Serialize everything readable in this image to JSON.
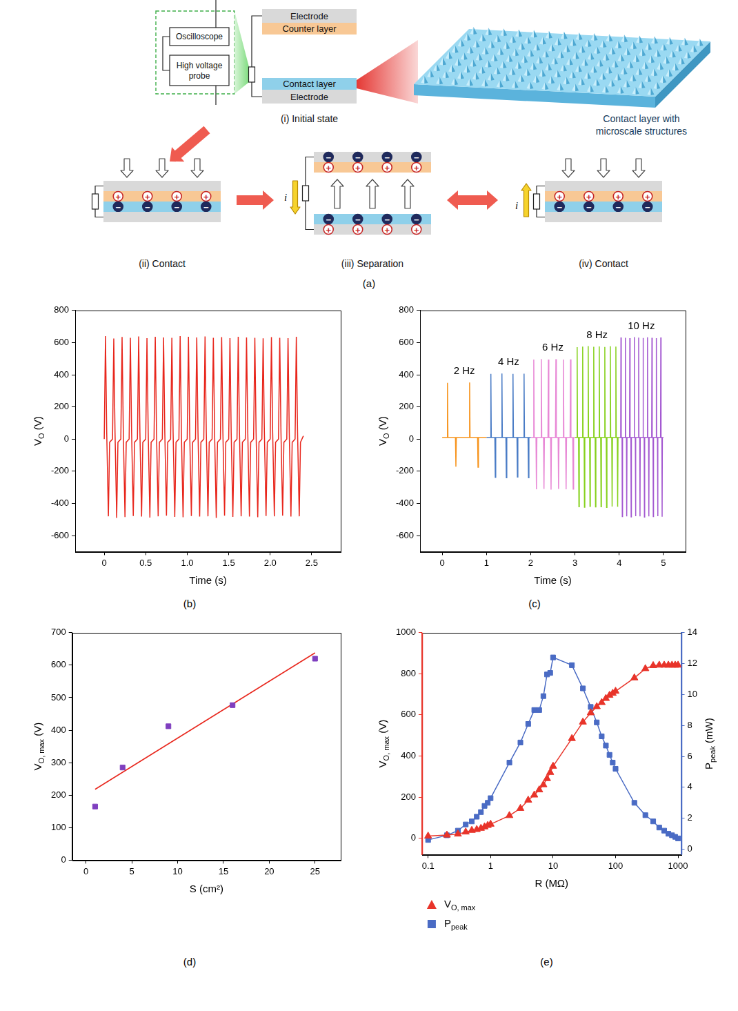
{
  "diagram": {
    "caption": "(a)",
    "instruments": [
      "Oscilloscope",
      "High voltage probe"
    ],
    "initial_state": {
      "caption": "(i) Initial state",
      "layers": [
        "Electrode",
        "Counter layer",
        "Contact layer",
        "Electrode"
      ]
    },
    "inset": "Contact layer with microscale structures",
    "stages": [
      {
        "caption": "(ii) Contact",
        "state": "contact"
      },
      {
        "caption": "(iii) Separation",
        "state": "separation",
        "current": "i",
        "current_direction": "down"
      },
      {
        "caption": "(iv) Contact",
        "state": "contact",
        "current": "i",
        "current_direction": "up"
      }
    ],
    "charges": {
      "positive": "+",
      "negative": "−"
    }
  },
  "chart_data": [
    {
      "caption": "(b)",
      "type": "line",
      "x_label": "Time (s)",
      "y_label": {
        "text": "VO (V)",
        "subscript": "O"
      },
      "xlim": [
        -0.35,
        2.85
      ],
      "ylim": [
        -700,
        800
      ],
      "xticks": [
        0,
        0.5,
        {
          "value": 1,
          "label": "1.0"
        },
        1.5,
        {
          "value": 2,
          "label": "2.0"
        },
        2.5
      ],
      "yticks": [
        -600,
        -400,
        -200,
        0,
        200,
        400,
        600,
        800
      ],
      "grid": false,
      "series": [
        {
          "color": "#e8261c",
          "x": [
            0,
            0.015,
            0.03,
            0.05,
            0.065,
            0.1,
            0.115,
            0.13,
            0.15,
            0.165,
            0.2,
            0.215,
            0.23,
            0.25,
            0.265,
            0.3,
            0.315,
            0.33,
            0.35,
            0.365,
            0.4,
            0.415,
            0.43,
            0.45,
            0.465,
            0.5,
            0.515,
            0.53,
            0.55,
            0.565,
            0.6,
            0.615,
            0.63,
            0.65,
            0.665,
            0.7,
            0.715,
            0.73,
            0.75,
            0.765,
            0.8,
            0.815,
            0.83,
            0.85,
            0.865,
            0.9,
            0.915,
            0.93,
            0.95,
            0.965,
            1.0,
            1.015,
            1.03,
            1.05,
            1.065,
            1.1,
            1.115,
            1.13,
            1.15,
            1.165,
            1.2,
            1.215,
            1.23,
            1.25,
            1.265,
            1.3,
            1.315,
            1.33,
            1.35,
            1.365,
            1.4,
            1.415,
            1.43,
            1.45,
            1.465,
            1.5,
            1.515,
            1.53,
            1.55,
            1.565,
            1.6,
            1.615,
            1.63,
            1.65,
            1.665,
            1.7,
            1.715,
            1.73,
            1.75,
            1.765,
            1.8,
            1.815,
            1.83,
            1.85,
            1.865,
            1.9,
            1.915,
            1.93,
            1.95,
            1.965,
            2.0,
            2.015,
            2.03,
            2.05,
            2.065,
            2.1,
            2.115,
            2.13,
            2.15,
            2.165,
            2.2,
            2.215,
            2.23,
            2.25,
            2.265,
            2.3,
            2.315,
            2.33,
            2.35,
            2.365,
            2.4
          ],
          "values": [
            0,
            640,
            40,
            -480,
            -20,
            0,
            625,
            40,
            -490,
            -20,
            0,
            635,
            40,
            -485,
            -20,
            0,
            630,
            40,
            -478,
            -20,
            0,
            638,
            40,
            -482,
            -20,
            0,
            628,
            40,
            -488,
            -20,
            0,
            636,
            40,
            -480,
            -20,
            0,
            632,
            40,
            -476,
            -20,
            0,
            630,
            40,
            -484,
            -20,
            0,
            640,
            40,
            -486,
            -20,
            0,
            636,
            40,
            -478,
            -20,
            0,
            632,
            40,
            -482,
            -20,
            0,
            638,
            40,
            -480,
            -20,
            0,
            630,
            40,
            -490,
            -20,
            0,
            634,
            40,
            -476,
            -20,
            0,
            628,
            40,
            -484,
            -20,
            0,
            636,
            40,
            -480,
            -20,
            0,
            632,
            40,
            -482,
            -20,
            0,
            630,
            40,
            -486,
            -20,
            0,
            626,
            40,
            -478,
            -20,
            0,
            634,
            40,
            -480,
            -20,
            0,
            630,
            40,
            -476,
            -20,
            0,
            628,
            40,
            -482,
            -20,
            0,
            636,
            40,
            -480,
            -20,
            20
          ]
        }
      ]
    },
    {
      "caption": "(c)",
      "type": "line",
      "x_label": "Time (s)",
      "y_label": {
        "text": "VO (V)",
        "subscript": "O"
      },
      "xlim": [
        -0.5,
        5.5
      ],
      "ylim": [
        -700,
        800
      ],
      "xticks": [
        0,
        1,
        2,
        3,
        4,
        5
      ],
      "yticks": [
        -600,
        -400,
        -200,
        0,
        200,
        400,
        600,
        800
      ],
      "grid": false,
      "series": [
        {
          "name": "2 Hz",
          "color": "#f7941d",
          "x": [
            0,
            0.11,
            0.12,
            0.13,
            0.3,
            0.31,
            0.32,
            0.61,
            0.62,
            0.63,
            0.8,
            0.81,
            0.82,
            1.0
          ],
          "values": [
            10,
            10,
            350,
            10,
            10,
            -172,
            10,
            10,
            352,
            10,
            10,
            -175,
            10,
            10
          ]
        },
        {
          "name": "4 Hz",
          "color": "#4a7cc6",
          "x": [
            1.0,
            1.09,
            1.1,
            1.11,
            1.19,
            1.2,
            1.21,
            1.34,
            1.35,
            1.36,
            1.44,
            1.45,
            1.46,
            1.59,
            1.6,
            1.61,
            1.69,
            1.7,
            1.71,
            1.84,
            1.85,
            1.86,
            1.94,
            1.95,
            1.96,
            2.0
          ],
          "values": [
            10,
            10,
            405,
            10,
            10,
            -238,
            10,
            10,
            408,
            10,
            10,
            -240,
            10,
            10,
            405,
            10,
            10,
            -236,
            10,
            10,
            407,
            10,
            10,
            -240,
            10,
            10
          ]
        },
        {
          "name": "6 Hz",
          "color": "#e889d6",
          "x": [
            2.0,
            2.06,
            2.07,
            2.08,
            2.12,
            2.13,
            2.14,
            2.23,
            2.24,
            2.25,
            2.29,
            2.3,
            2.31,
            2.39,
            2.4,
            2.41,
            2.45,
            2.46,
            2.47,
            2.56,
            2.57,
            2.58,
            2.62,
            2.63,
            2.64,
            2.73,
            2.74,
            2.75,
            2.79,
            2.8,
            2.81,
            2.89,
            2.9,
            2.91,
            2.95,
            2.96,
            2.97,
            3.0
          ],
          "values": [
            10,
            10,
            495,
            10,
            10,
            -312,
            10,
            10,
            498,
            10,
            10,
            -310,
            10,
            10,
            494,
            10,
            10,
            -314,
            10,
            10,
            497,
            10,
            10,
            -310,
            10,
            10,
            495,
            10,
            10,
            -312,
            10,
            10,
            496,
            10,
            10,
            -311,
            10,
            10
          ]
        },
        {
          "name": "8 Hz",
          "color": "#86d11c",
          "x": [
            3.0,
            3.042,
            3.05,
            3.058,
            3.082,
            3.09,
            3.098,
            3.167,
            3.175,
            3.183,
            3.207,
            3.215,
            3.223,
            3.292,
            3.3,
            3.308,
            3.332,
            3.34,
            3.348,
            3.417,
            3.425,
            3.433,
            3.457,
            3.465,
            3.473,
            3.542,
            3.55,
            3.558,
            3.582,
            3.59,
            3.598,
            3.667,
            3.675,
            3.683,
            3.707,
            3.715,
            3.723,
            3.792,
            3.8,
            3.808,
            3.832,
            3.84,
            3.848,
            3.917,
            3.925,
            3.933,
            3.957,
            3.965,
            3.973,
            4.0
          ],
          "values": [
            10,
            10,
            572,
            10,
            10,
            -420,
            10,
            10,
            575,
            10,
            10,
            -424,
            10,
            10,
            578,
            10,
            10,
            -418,
            10,
            10,
            574,
            10,
            10,
            -422,
            10,
            10,
            576,
            10,
            10,
            -420,
            10,
            10,
            573,
            10,
            10,
            -425,
            10,
            10,
            577,
            10,
            10,
            -419,
            10,
            10,
            575,
            10,
            10,
            -421,
            10,
            10
          ]
        },
        {
          "name": "10 Hz",
          "color": "#a459d1",
          "x": [
            4.0,
            4.034,
            4.04,
            4.046,
            4.064,
            4.07,
            4.076,
            4.134,
            4.14,
            4.146,
            4.164,
            4.17,
            4.176,
            4.234,
            4.24,
            4.246,
            4.264,
            4.27,
            4.276,
            4.334,
            4.34,
            4.346,
            4.364,
            4.37,
            4.376,
            4.434,
            4.44,
            4.446,
            4.464,
            4.47,
            4.476,
            4.534,
            4.54,
            4.546,
            4.564,
            4.57,
            4.576,
            4.634,
            4.64,
            4.646,
            4.664,
            4.67,
            4.676,
            4.734,
            4.74,
            4.746,
            4.764,
            4.77,
            4.776,
            4.834,
            4.84,
            4.846,
            4.864,
            4.87,
            4.876,
            4.934,
            4.94,
            4.946,
            4.964,
            4.97,
            4.976,
            5.0
          ],
          "values": [
            10,
            10,
            632,
            10,
            10,
            -482,
            10,
            10,
            630,
            10,
            10,
            -480,
            10,
            10,
            628,
            10,
            10,
            -484,
            10,
            10,
            634,
            10,
            10,
            -479,
            10,
            10,
            631,
            10,
            10,
            -481,
            10,
            10,
            629,
            10,
            10,
            -485,
            10,
            10,
            633,
            10,
            10,
            -480,
            10,
            10,
            630,
            10,
            10,
            -482,
            10,
            10,
            628,
            10,
            10,
            -479,
            10,
            10,
            632,
            10,
            10,
            -483,
            10,
            10
          ]
        }
      ]
    },
    {
      "caption": "(d)",
      "type": "scatter",
      "x_label": "S (cm²)",
      "y_label": {
        "text": "VO, max (V)",
        "subscript": "O, max"
      },
      "xlim": [
        -1.5,
        27.8
      ],
      "ylim": [
        0,
        700
      ],
      "xticks": [
        0,
        5,
        10,
        15,
        20,
        25
      ],
      "yticks": [
        0,
        100,
        200,
        300,
        400,
        500,
        600,
        700
      ],
      "grid": false,
      "series": [
        {
          "type": "scatter",
          "marker": "square",
          "color": "#7f3fbf",
          "x": [
            1,
            4,
            9,
            16,
            25
          ],
          "values": [
            165,
            285,
            412,
            477,
            620
          ]
        },
        {
          "type": "line",
          "line_style": "solid",
          "color": "#e8261c",
          "x": [
            1,
            25
          ],
          "values": [
            218,
            638
          ]
        }
      ]
    },
    {
      "caption": "(e)",
      "type": "line",
      "log": "x",
      "x_label": "R (MΩ)",
      "y_label": {
        "text": "VO, max (V)",
        "subscript": "O, max"
      },
      "y2_label": {
        "text": "Ppeak (mW)",
        "subscript": "peak"
      },
      "xlim": [
        0.08,
        1120
      ],
      "ylim": [
        -80,
        1000
      ],
      "y2lim": [
        -0.35,
        14
      ],
      "xticks": [
        0.1,
        1,
        10,
        100,
        1000
      ],
      "yticks": [
        0,
        200,
        400,
        600,
        800,
        1000
      ],
      "y2ticks": [
        0,
        2,
        4,
        6,
        8,
        10,
        12,
        14
      ],
      "grid": false,
      "legend": "bottom",
      "series": [
        {
          "name": {
            "text": "VO, max",
            "subscript": "O, max"
          },
          "marker": "triangle",
          "color": "#e8342a",
          "axis": "y",
          "x": [
            0.1,
            0.2,
            0.3,
            0.4,
            0.5,
            0.6,
            0.7,
            0.8,
            0.9,
            1,
            2,
            3,
            4,
            5,
            6,
            7,
            8,
            9,
            10,
            20,
            30,
            40,
            50,
            60,
            70,
            80,
            90,
            100,
            200,
            300,
            400,
            500,
            600,
            700,
            800,
            900,
            1000
          ],
          "values": [
            10,
            15,
            20,
            30,
            38,
            42,
            48,
            55,
            62,
            68,
            110,
            145,
            185,
            210,
            235,
            260,
            290,
            320,
            350,
            485,
            565,
            610,
            640,
            660,
            680,
            695,
            705,
            715,
            780,
            825,
            840,
            842,
            842,
            842,
            842,
            842,
            842
          ]
        },
        {
          "name": {
            "text": "Ppeak",
            "subscript": "peak"
          },
          "marker": "square",
          "color": "#4a6bc4",
          "axis": "y2",
          "x": [
            0.1,
            0.2,
            0.3,
            0.4,
            0.5,
            0.6,
            0.7,
            0.8,
            0.9,
            1,
            2,
            3,
            4,
            5,
            6,
            7,
            8,
            9,
            10,
            20,
            30,
            40,
            50,
            60,
            70,
            80,
            90,
            100,
            200,
            300,
            400,
            500,
            600,
            700,
            800,
            900,
            1000
          ],
          "values": [
            0.6,
            0.9,
            1.2,
            1.6,
            1.8,
            2.1,
            2.4,
            2.8,
            3.0,
            3.3,
            5.6,
            6.9,
            8.1,
            9.0,
            9.0,
            9.9,
            11.3,
            11.4,
            12.4,
            11.9,
            10.4,
            9.2,
            8.2,
            7.3,
            6.7,
            6.1,
            5.6,
            5.2,
            3.0,
            2.2,
            1.8,
            1.4,
            1.2,
            1.0,
            0.9,
            0.8,
            0.7
          ]
        }
      ]
    }
  ]
}
